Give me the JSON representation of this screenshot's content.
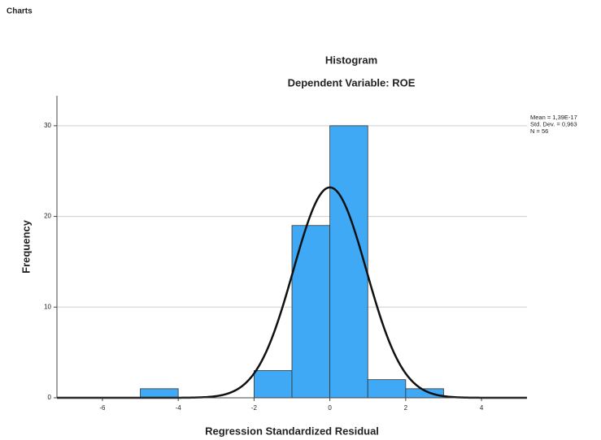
{
  "page_heading": "Charts",
  "chart_data": {
    "type": "histogram",
    "title": "Histogram",
    "subtitle": "Dependent Variable: ROE",
    "x_label": "Regression Standardized Residual",
    "y_label": "Frequency",
    "bins": [
      -5,
      -4,
      -3,
      -2,
      -1,
      0,
      1,
      2,
      3
    ],
    "counts": [
      1,
      0,
      0,
      3,
      19,
      30,
      2,
      1
    ],
    "color": "#3fa9f5",
    "xlim": [
      -7.2,
      5.2
    ],
    "xticks": [
      -6,
      -4,
      -2,
      0,
      2,
      4
    ],
    "ylim": [
      0,
      33.3
    ],
    "yticks": [
      0,
      10,
      20,
      30
    ],
    "grid": true,
    "stats": [
      {
        "value": 1.39e-17,
        "label": "Mean = 1,39E-17"
      },
      {
        "value": 0.963,
        "label": "Std. Dev. = 0,963"
      },
      {
        "value": 56,
        "label": "N = 56"
      }
    ]
  }
}
